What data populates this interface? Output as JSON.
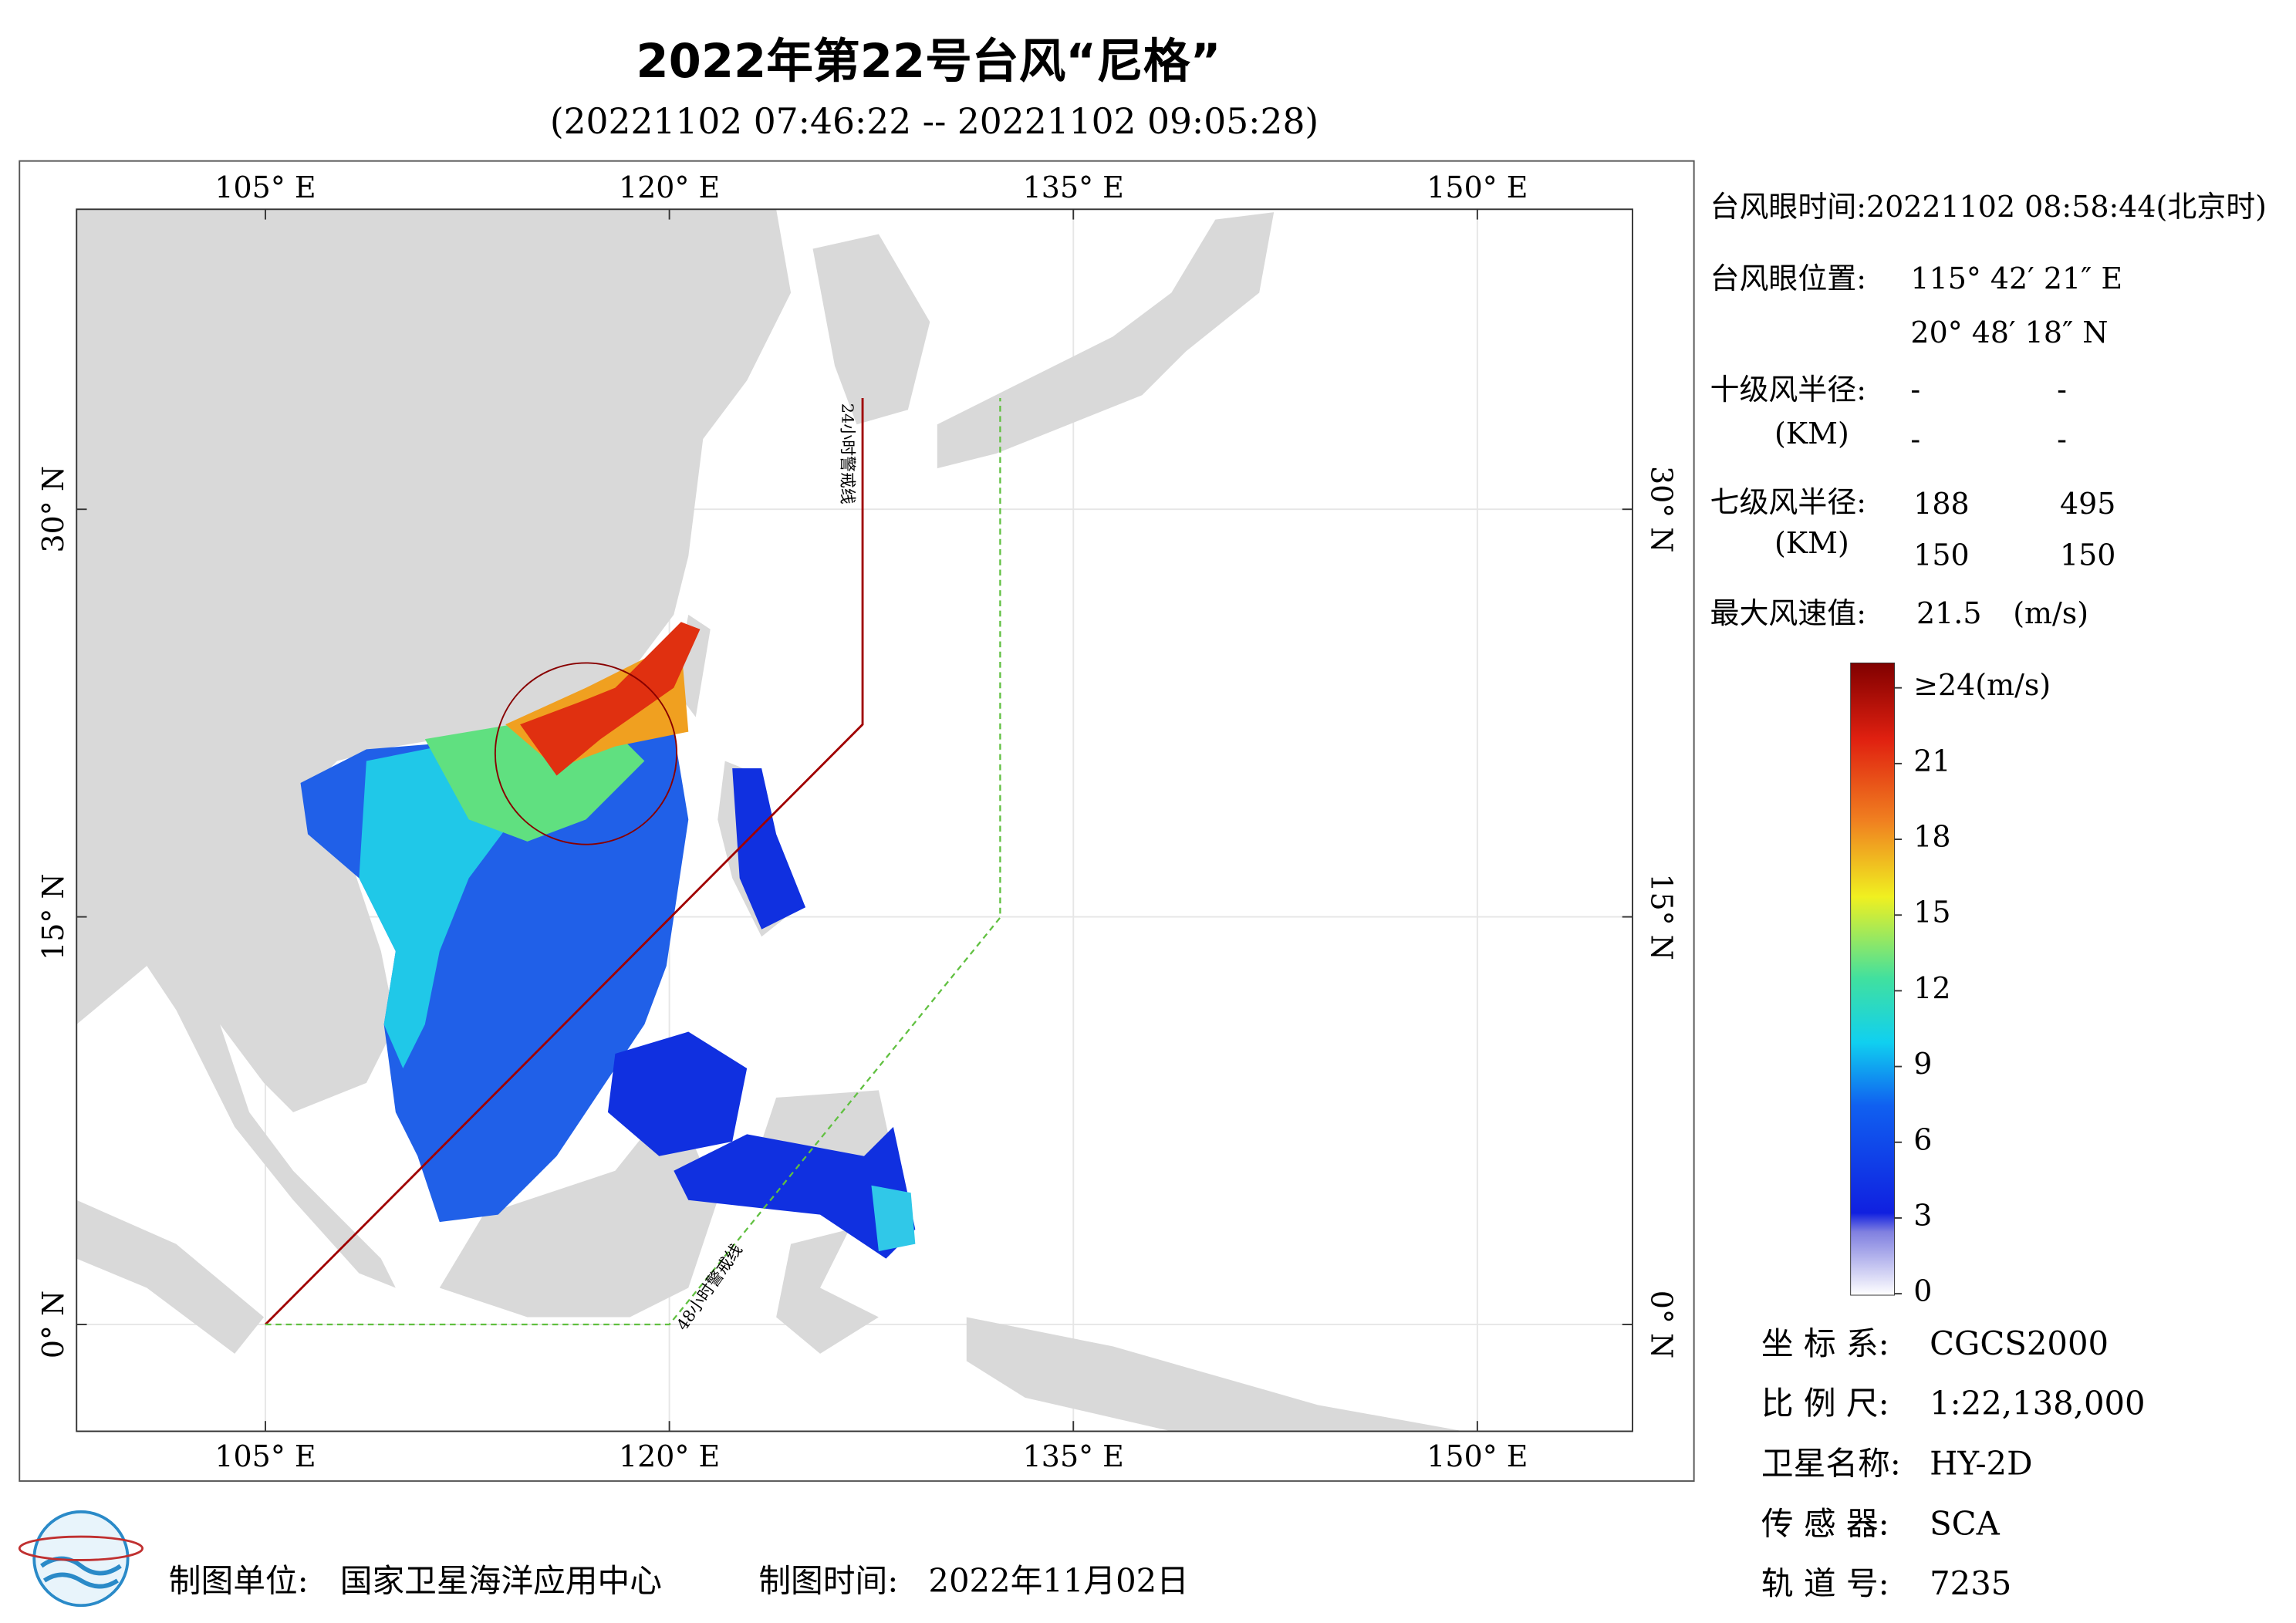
{
  "header": {
    "title": "2022年第22号台风“尼格”",
    "subtitle": "(20221102 07:46:22 -- 20221102 09:05:28)"
  },
  "map": {
    "lon_ticks": [
      {
        "value": 105,
        "label": "105° E"
      },
      {
        "value": 120,
        "label": "120° E"
      },
      {
        "value": 135,
        "label": "135° E"
      },
      {
        "value": 150,
        "label": "150° E"
      }
    ],
    "lat_ticks": [
      {
        "value": 30,
        "label": "30° N"
      },
      {
        "value": 15,
        "label": "15° N"
      },
      {
        "value": 0,
        "label": "0° N"
      }
    ],
    "warning_24h": "24小时警戒线",
    "warning_48h": "48小时警戒线"
  },
  "info": {
    "eye_time": "台风眼时间:20221102 08:58:44(北京时)",
    "eye_position_label": "台风眼位置:",
    "eye_lon": "115° 42′ 21″ E",
    "eye_lat": "20° 48′ 18″ N",
    "r10_label": "十级风半径:",
    "r10_unit": "(KM)",
    "r10_values": [
      "-",
      "-",
      "-",
      "-"
    ],
    "r7_label": "七级风半径:",
    "r7_unit": "(KM)",
    "r7_values": [
      188,
      495,
      150,
      150
    ],
    "max_wind_label": "最大风速值:",
    "max_wind": 21.5,
    "max_wind_unit": "(m/s)"
  },
  "colorbar": {
    "ticks": [
      {
        "value": 24,
        "label": "≥24(m/s)"
      },
      21,
      18,
      15,
      12,
      9,
      6,
      3,
      0
    ]
  },
  "meta": [
    {
      "label": "坐 标 系:",
      "value": "CGCS2000"
    },
    {
      "label": "比 例 尺:",
      "value": "1:22,138,000"
    },
    {
      "label": "卫星名称:",
      "value": "HY-2D"
    },
    {
      "label": "传 感 器:",
      "value": "SCA"
    },
    {
      "label": "轨 道 号:",
      "value": "7235"
    }
  ],
  "footer": {
    "unit_label": "制图单位:",
    "unit": "国家卫星海洋应用中心",
    "time_label": "制图时间:",
    "time": "2022年11月02日"
  }
}
